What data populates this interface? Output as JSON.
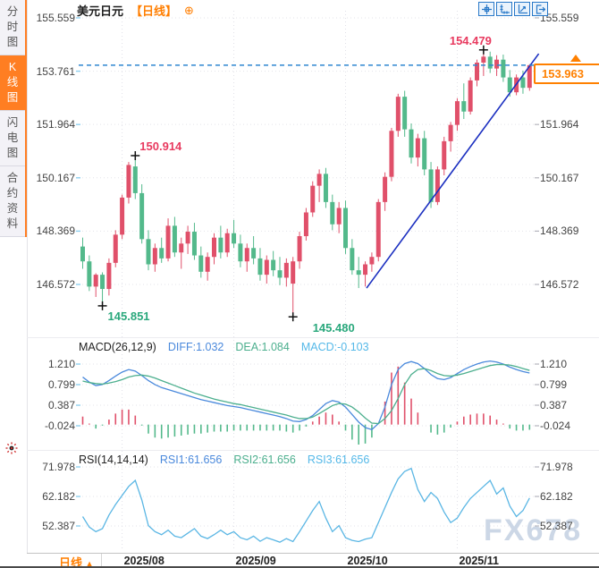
{
  "header": {
    "title": "美元日元",
    "period_tag": "【日线】",
    "add_symbol": "⊕"
  },
  "toolbar": {
    "buttons": [
      "crosshair",
      "axis-scale",
      "trend-mode",
      "exit-chart"
    ]
  },
  "sidebar": {
    "tabs": [
      {
        "label": "分时图",
        "active": false
      },
      {
        "label": "K线图",
        "active": true
      },
      {
        "label": "闪电图",
        "active": false
      },
      {
        "label": "合约资料",
        "active": false
      }
    ]
  },
  "bottom_bar": {
    "period_label": "日线",
    "period_arrow": "▲",
    "dates": [
      "2025/08",
      "2025/09",
      "2025/10",
      "2025/11"
    ]
  },
  "watermark": "FX678",
  "colors": {
    "accent_orange": "#ff7e00",
    "up_red": "#e0506a",
    "down_green": "#53b98b",
    "diff_blue": "#4a89dc",
    "dea_green": "#4caf8e",
    "macd_cyan": "#54b8e8",
    "annotation_red": "#e83a5f",
    "annotation_green": "#2aa87c",
    "current_line_blue": "#2e86d0",
    "trend_blue": "#1b2fc0",
    "rsi_line": "#5ab6e4"
  },
  "chart_data": [
    {
      "type": "candlestick",
      "title": "美元日元 日线",
      "y_ticks": [
        155.559,
        153.761,
        151.964,
        150.167,
        148.369,
        146.572
      ],
      "x_labels": [
        "2025/08",
        "2025/09",
        "2025/10",
        "2025/11"
      ],
      "month_tick_indices": [
        6,
        23,
        40,
        57
      ],
      "current_price": "153.963",
      "current_price_value": 153.963,
      "annotations": [
        {
          "value": "150.914",
          "price": 150.914,
          "index": 8,
          "type": "swing-high",
          "placement": "above-right"
        },
        {
          "value": "154.479",
          "price": 154.479,
          "index": 61,
          "type": "high",
          "placement": "above-left"
        },
        {
          "value": "145.851",
          "price": 145.851,
          "index": 3,
          "type": "swing-low",
          "placement": "below-right"
        },
        {
          "value": "145.480",
          "price": 145.48,
          "index": 32,
          "type": "low",
          "placement": "below-right-far"
        }
      ],
      "trendline": {
        "from_index": 43.2,
        "from_price": 146.45,
        "to_index": 69.4,
        "to_price": 154.35
      },
      "candles": [
        [
          147.85,
          148.15,
          147.1,
          147.35
        ],
        [
          147.35,
          147.55,
          146.35,
          146.5
        ],
        [
          146.5,
          146.95,
          146.15,
          146.9
        ],
        [
          146.9,
          146.98,
          145.851,
          146.42
        ],
        [
          146.42,
          147.45,
          146.2,
          147.3
        ],
        [
          147.3,
          148.4,
          147.15,
          148.25
        ],
        [
          148.25,
          149.6,
          148.1,
          149.5
        ],
        [
          149.5,
          150.7,
          149.3,
          150.6
        ],
        [
          150.55,
          150.914,
          149.45,
          149.65
        ],
        [
          149.65,
          149.95,
          147.95,
          148.1
        ],
        [
          148.1,
          148.4,
          147.05,
          147.25
        ],
        [
          147.25,
          147.95,
          147.0,
          147.8
        ],
        [
          147.8,
          148.15,
          147.3,
          147.45
        ],
        [
          147.45,
          148.8,
          147.35,
          148.55
        ],
        [
          148.55,
          148.85,
          147.5,
          147.65
        ],
        [
          147.65,
          148.15,
          147.1,
          147.95
        ],
        [
          147.95,
          148.55,
          147.6,
          148.35
        ],
        [
          148.35,
          148.65,
          147.4,
          147.55
        ],
        [
          147.55,
          147.85,
          146.8,
          147.0
        ],
        [
          147.0,
          147.65,
          146.7,
          147.5
        ],
        [
          147.5,
          148.3,
          147.25,
          148.15
        ],
        [
          148.15,
          148.55,
          147.45,
          147.65
        ],
        [
          147.65,
          148.45,
          147.5,
          148.3
        ],
        [
          148.3,
          148.75,
          147.8,
          147.95
        ],
        [
          147.95,
          148.25,
          147.15,
          147.35
        ],
        [
          147.35,
          147.95,
          147.0,
          147.8
        ],
        [
          147.8,
          148.2,
          147.25,
          147.45
        ],
        [
          147.45,
          147.8,
          146.7,
          146.9
        ],
        [
          146.9,
          147.55,
          146.6,
          147.4
        ],
        [
          147.4,
          147.7,
          146.85,
          147.05
        ],
        [
          147.05,
          147.5,
          146.55,
          146.8
        ],
        [
          146.8,
          147.45,
          146.5,
          147.3
        ],
        [
          146.6,
          147.5,
          145.48,
          147.35
        ],
        [
          147.35,
          148.35,
          147.1,
          148.2
        ],
        [
          148.2,
          149.15,
          148.05,
          149.0
        ],
        [
          149.0,
          150.05,
          148.85,
          149.9
        ],
        [
          149.9,
          150.45,
          149.35,
          150.3
        ],
        [
          150.3,
          150.5,
          149.15,
          149.35
        ],
        [
          149.35,
          149.6,
          148.4,
          148.6
        ],
        [
          148.6,
          149.35,
          148.3,
          149.15
        ],
        [
          149.15,
          149.4,
          147.6,
          147.8
        ],
        [
          147.8,
          148.1,
          146.9,
          147.05
        ],
        [
          147.05,
          147.5,
          146.45,
          146.9
        ],
        [
          146.9,
          147.35,
          146.5,
          147.25
        ],
        [
          147.25,
          147.65,
          147.0,
          147.5
        ],
        [
          147.5,
          149.45,
          147.35,
          149.35
        ],
        [
          149.35,
          150.35,
          149.05,
          150.2
        ],
        [
          150.2,
          151.85,
          150.05,
          151.75
        ],
        [
          151.75,
          153.0,
          151.55,
          152.9
        ],
        [
          152.9,
          153.1,
          151.55,
          151.8
        ],
        [
          151.8,
          152.0,
          150.65,
          150.85
        ],
        [
          150.85,
          151.65,
          150.55,
          151.5
        ],
        [
          151.5,
          151.75,
          150.25,
          150.45
        ],
        [
          150.45,
          150.7,
          149.15,
          149.35
        ],
        [
          149.35,
          150.55,
          149.25,
          150.45
        ],
        [
          150.45,
          151.55,
          150.25,
          151.4
        ],
        [
          151.4,
          152.05,
          151.05,
          151.95
        ],
        [
          151.95,
          152.85,
          151.75,
          152.75
        ],
        [
          152.75,
          153.35,
          152.15,
          152.4
        ],
        [
          152.4,
          153.55,
          152.3,
          153.45
        ],
        [
          153.45,
          154.15,
          153.25,
          154.05
        ],
        [
          154.05,
          154.479,
          153.6,
          154.25
        ],
        [
          154.25,
          154.42,
          153.7,
          153.85
        ],
        [
          153.85,
          154.3,
          153.6,
          154.15
        ],
        [
          154.15,
          154.32,
          153.4,
          153.55
        ],
        [
          153.55,
          153.8,
          152.9,
          153.05
        ],
        [
          153.05,
          153.65,
          152.95,
          153.55
        ],
        [
          153.55,
          153.78,
          153.0,
          153.2
        ],
        [
          153.2,
          154.0,
          153.1,
          153.963
        ]
      ]
    },
    {
      "type": "macd",
      "label": "MACD(26,12,9)",
      "values_text": {
        "diff": "DIFF:1.032",
        "dea": "DEA:1.084",
        "macd": "MACD:-0.103"
      },
      "y_ticks": [
        1.21,
        0.799,
        0.387,
        -0.024
      ],
      "diff": [
        0.95,
        0.85,
        0.78,
        0.8,
        0.88,
        0.97,
        1.05,
        1.1,
        1.07,
        0.98,
        0.88,
        0.8,
        0.74,
        0.7,
        0.66,
        0.62,
        0.58,
        0.54,
        0.5,
        0.47,
        0.44,
        0.41,
        0.38,
        0.36,
        0.34,
        0.31,
        0.28,
        0.25,
        0.22,
        0.19,
        0.16,
        0.12,
        0.07,
        0.06,
        0.1,
        0.18,
        0.3,
        0.42,
        0.48,
        0.45,
        0.35,
        0.2,
        0.05,
        -0.06,
        -0.1,
        0.02,
        0.35,
        0.8,
        1.1,
        1.22,
        1.26,
        1.22,
        1.12,
        1.0,
        0.92,
        0.9,
        0.94,
        1.02,
        1.1,
        1.16,
        1.21,
        1.25,
        1.27,
        1.25,
        1.21,
        1.15,
        1.1,
        1.06,
        1.032
      ],
      "dea": [
        0.87,
        0.84,
        0.82,
        0.81,
        0.83,
        0.86,
        0.9,
        0.95,
        0.98,
        0.99,
        0.97,
        0.93,
        0.88,
        0.83,
        0.78,
        0.73,
        0.68,
        0.63,
        0.59,
        0.55,
        0.51,
        0.48,
        0.45,
        0.42,
        0.4,
        0.37,
        0.34,
        0.31,
        0.28,
        0.25,
        0.22,
        0.19,
        0.15,
        0.12,
        0.12,
        0.15,
        0.22,
        0.3,
        0.38,
        0.42,
        0.41,
        0.35,
        0.25,
        0.13,
        0.03,
        0.02,
        0.12,
        0.28,
        0.52,
        0.8,
        1.0,
        1.1,
        1.12,
        1.08,
        1.02,
        0.98,
        0.97,
        0.99,
        1.02,
        1.06,
        1.1,
        1.14,
        1.18,
        1.2,
        1.2,
        1.19,
        1.16,
        1.12,
        1.084
      ]
    },
    {
      "type": "rsi",
      "label": "RSI(14,14,14)",
      "values_text": {
        "rsi1": "RSI1:61.656",
        "rsi2": "RSI2:61.656",
        "rsi3": "RSI3:61.656"
      },
      "y_ticks": [
        71.978,
        62.182,
        52.387
      ],
      "values": [
        55.5,
        52.0,
        50.5,
        51.5,
        56.0,
        59.5,
        62.5,
        65.5,
        67.5,
        61.0,
        52.5,
        50.5,
        49.5,
        51.0,
        49.0,
        48.5,
        50.0,
        51.5,
        49.0,
        48.2,
        49.5,
        51.0,
        49.5,
        50.5,
        48.5,
        47.8,
        49.0,
        47.3,
        48.5,
        47.8,
        47.0,
        48.2,
        47.2,
        50.5,
        54.0,
        57.5,
        60.5,
        55.0,
        50.5,
        52.5,
        48.5,
        47.6,
        47.2,
        48.0,
        48.5,
        53.5,
        58.5,
        63.5,
        68.0,
        70.5,
        71.5,
        64.5,
        60.5,
        63.5,
        61.5,
        57.0,
        53.5,
        55.0,
        58.5,
        61.5,
        63.5,
        65.5,
        67.5,
        63.0,
        65.0,
        59.0,
        55.5,
        57.5,
        61.656
      ]
    }
  ]
}
